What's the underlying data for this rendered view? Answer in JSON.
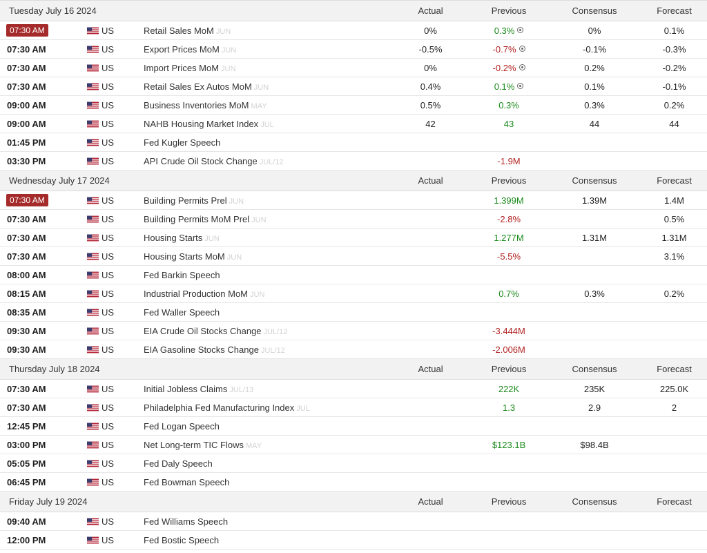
{
  "headers": {
    "actual": "Actual",
    "previous": "Previous",
    "consensus": "Consensus",
    "forecast": "Forecast"
  },
  "days": [
    {
      "title": "Tuesday July 16 2024",
      "events": [
        {
          "time": "07:30 AM",
          "highlight": true,
          "country": "US",
          "event": "Retail Sales MoM",
          "ref": "JUN",
          "actual": "0%",
          "previous": "0.3%",
          "prev_color": "pos",
          "revised": true,
          "consensus": "0%",
          "forecast": "0.1%"
        },
        {
          "time": "07:30 AM",
          "country": "US",
          "event": "Export Prices MoM",
          "ref": "JUN",
          "actual": "-0.5%",
          "previous": "-0.7%",
          "prev_color": "neg",
          "revised": true,
          "consensus": "-0.1%",
          "forecast": "-0.3%"
        },
        {
          "time": "07:30 AM",
          "country": "US",
          "event": "Import Prices MoM",
          "ref": "JUN",
          "actual": "0%",
          "previous": "-0.2%",
          "prev_color": "neg",
          "revised": true,
          "consensus": "0.2%",
          "forecast": "-0.2%"
        },
        {
          "time": "07:30 AM",
          "country": "US",
          "event": "Retail Sales Ex Autos MoM",
          "ref": "JUN",
          "actual": "0.4%",
          "previous": "0.1%",
          "prev_color": "pos",
          "revised": true,
          "consensus": "0.1%",
          "forecast": "-0.1%"
        },
        {
          "time": "09:00 AM",
          "country": "US",
          "event": "Business Inventories MoM",
          "ref": "MAY",
          "actual": "0.5%",
          "previous": "0.3%",
          "prev_color": "pos",
          "consensus": "0.3%",
          "forecast": "0.2%"
        },
        {
          "time": "09:00 AM",
          "country": "US",
          "event": "NAHB Housing Market Index",
          "ref": "JUL",
          "actual": "42",
          "previous": "43",
          "prev_color": "pos",
          "consensus": "44",
          "forecast": "44"
        },
        {
          "time": "01:45 PM",
          "country": "US",
          "event": "Fed Kugler Speech",
          "ref": "",
          "actual": "",
          "previous": "",
          "consensus": "",
          "forecast": ""
        },
        {
          "time": "03:30 PM",
          "country": "US",
          "event": "API Crude Oil Stock Change",
          "ref": "JUL/12",
          "actual": "",
          "previous": "-1.9M",
          "prev_color": "neg",
          "consensus": "",
          "forecast": ""
        }
      ]
    },
    {
      "title": "Wednesday July 17 2024",
      "events": [
        {
          "time": "07:30 AM",
          "highlight": true,
          "country": "US",
          "event": "Building Permits Prel",
          "ref": "JUN",
          "actual": "",
          "previous": "1.399M",
          "prev_color": "pos",
          "consensus": "1.39M",
          "forecast": "1.4M"
        },
        {
          "time": "07:30 AM",
          "country": "US",
          "event": "Building Permits MoM Prel",
          "ref": "JUN",
          "actual": "",
          "previous": "-2.8%",
          "prev_color": "neg",
          "consensus": "",
          "forecast": "0.5%"
        },
        {
          "time": "07:30 AM",
          "country": "US",
          "event": "Housing Starts",
          "ref": "JUN",
          "actual": "",
          "previous": "1.277M",
          "prev_color": "pos",
          "consensus": "1.31M",
          "forecast": "1.31M"
        },
        {
          "time": "07:30 AM",
          "country": "US",
          "event": "Housing Starts MoM",
          "ref": "JUN",
          "actual": "",
          "previous": "-5.5%",
          "prev_color": "neg",
          "consensus": "",
          "forecast": "3.1%"
        },
        {
          "time": "08:00 AM",
          "country": "US",
          "event": "Fed Barkin Speech",
          "ref": "",
          "actual": "",
          "previous": "",
          "consensus": "",
          "forecast": ""
        },
        {
          "time": "08:15 AM",
          "country": "US",
          "event": "Industrial Production MoM",
          "ref": "JUN",
          "actual": "",
          "previous": "0.7%",
          "prev_color": "pos",
          "consensus": "0.3%",
          "forecast": "0.2%"
        },
        {
          "time": "08:35 AM",
          "country": "US",
          "event": "Fed Waller Speech",
          "ref": "",
          "actual": "",
          "previous": "",
          "consensus": "",
          "forecast": ""
        },
        {
          "time": "09:30 AM",
          "country": "US",
          "event": "EIA Crude Oil Stocks Change",
          "ref": "JUL/12",
          "actual": "",
          "previous": "-3.444M",
          "prev_color": "neg",
          "consensus": "",
          "forecast": ""
        },
        {
          "time": "09:30 AM",
          "country": "US",
          "event": "EIA Gasoline Stocks Change",
          "ref": "JUL/12",
          "actual": "",
          "previous": "-2.006M",
          "prev_color": "neg",
          "consensus": "",
          "forecast": ""
        }
      ]
    },
    {
      "title": "Thursday July 18 2024",
      "events": [
        {
          "time": "07:30 AM",
          "country": "US",
          "event": "Initial Jobless Claims",
          "ref": "JUL/13",
          "actual": "",
          "previous": "222K",
          "prev_color": "pos",
          "consensus": "235K",
          "forecast": "225.0K"
        },
        {
          "time": "07:30 AM",
          "country": "US",
          "event": "Philadelphia Fed Manufacturing Index",
          "ref": "JUL",
          "actual": "",
          "previous": "1.3",
          "prev_color": "pos",
          "consensus": "2.9",
          "forecast": "2"
        },
        {
          "time": "12:45 PM",
          "country": "US",
          "event": "Fed Logan Speech",
          "ref": "",
          "actual": "",
          "previous": "",
          "consensus": "",
          "forecast": ""
        },
        {
          "time": "03:00 PM",
          "country": "US",
          "event": "Net Long-term TIC Flows",
          "ref": "MAY",
          "actual": "",
          "previous": "$123.1B",
          "prev_color": "pos",
          "consensus": "$98.4B",
          "forecast": ""
        },
        {
          "time": "05:05 PM",
          "country": "US",
          "event": "Fed Daly Speech",
          "ref": "",
          "actual": "",
          "previous": "",
          "consensus": "",
          "forecast": ""
        },
        {
          "time": "06:45 PM",
          "country": "US",
          "event": "Fed Bowman Speech",
          "ref": "",
          "actual": "",
          "previous": "",
          "consensus": "",
          "forecast": ""
        }
      ]
    },
    {
      "title": "Friday July 19 2024",
      "events": [
        {
          "time": "09:40 AM",
          "country": "US",
          "event": "Fed Williams Speech",
          "ref": "",
          "actual": "",
          "previous": "",
          "consensus": "",
          "forecast": ""
        },
        {
          "time": "12:00 PM",
          "country": "US",
          "event": "Fed Bostic Speech",
          "ref": "",
          "actual": "",
          "previous": "",
          "consensus": "",
          "forecast": ""
        }
      ]
    }
  ],
  "colors": {
    "highlight_badge": "#a52a2a",
    "positive": "#1a8a1a",
    "negative": "#b22222",
    "day_header_bg": "#f2f2f2"
  },
  "icons": {
    "flag": "us-flag-icon",
    "revised": "revised-indicator-icon"
  }
}
